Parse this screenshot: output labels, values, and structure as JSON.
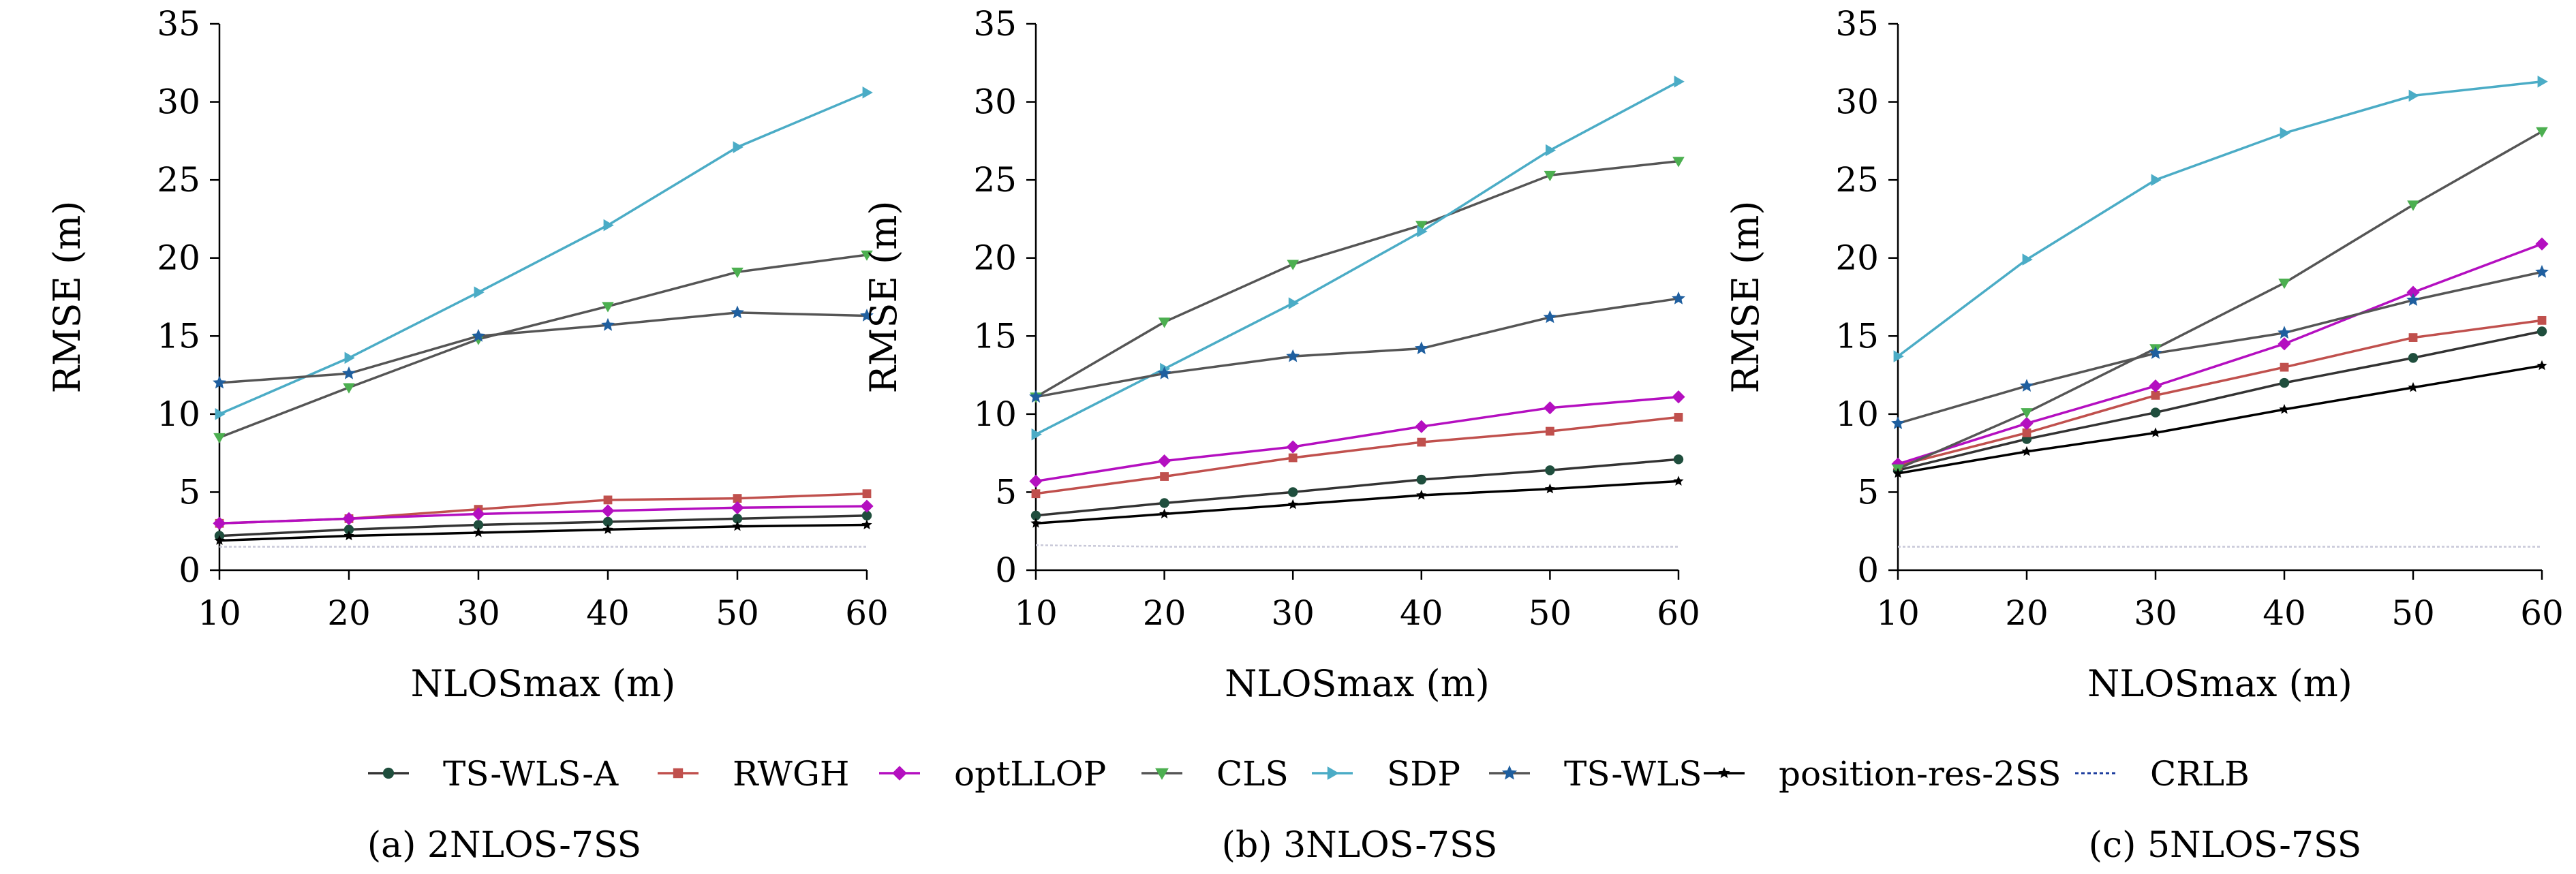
{
  "chart_data": [
    {
      "type": "line",
      "caption": "(a) 2NLOS-7SS",
      "xlabel": "NLOSmax (m)",
      "ylabel": "RMSE (m)",
      "xlim": [
        10,
        60
      ],
      "ylim": [
        0,
        35
      ],
      "x_ticks": [
        10,
        20,
        30,
        40,
        50,
        60
      ],
      "y_ticks": [
        0,
        5,
        10,
        15,
        20,
        25,
        30,
        35
      ],
      "grid": false,
      "x": [
        10,
        20,
        30,
        40,
        50,
        60
      ],
      "series": [
        {
          "name": "TS-WLS-A",
          "values": [
            2.2,
            2.6,
            2.9,
            3.1,
            3.3,
            3.5
          ]
        },
        {
          "name": "RWGH",
          "values": [
            3.0,
            3.3,
            3.9,
            4.5,
            4.6,
            4.9
          ]
        },
        {
          "name": "optLLOP",
          "values": [
            3.0,
            3.3,
            3.6,
            3.8,
            4.0,
            4.1
          ]
        },
        {
          "name": "CLS",
          "values": [
            8.5,
            11.7,
            14.8,
            16.9,
            19.1,
            20.2
          ]
        },
        {
          "name": "SDP",
          "values": [
            10.0,
            13.6,
            17.8,
            22.1,
            27.1,
            30.6
          ]
        },
        {
          "name": "TS-WLS",
          "values": [
            12.0,
            12.6,
            15.0,
            15.7,
            16.5,
            16.3
          ]
        },
        {
          "name": "position-res-2SS",
          "values": [
            1.9,
            2.2,
            2.4,
            2.6,
            2.8,
            2.9
          ]
        },
        {
          "name": "CRLB",
          "values": [
            1.5,
            1.5,
            1.5,
            1.5,
            1.5,
            1.5
          ]
        }
      ]
    },
    {
      "type": "line",
      "caption": "(b) 3NLOS-7SS",
      "xlabel": "NLOSmax (m)",
      "ylabel": "RMSE (m)",
      "xlim": [
        10,
        60
      ],
      "ylim": [
        0,
        35
      ],
      "x_ticks": [
        10,
        20,
        30,
        40,
        50,
        60
      ],
      "y_ticks": [
        0,
        5,
        10,
        15,
        20,
        25,
        30,
        35
      ],
      "grid": false,
      "x": [
        10,
        20,
        30,
        40,
        50,
        60
      ],
      "series": [
        {
          "name": "TS-WLS-A",
          "values": [
            3.5,
            4.3,
            5.0,
            5.8,
            6.4,
            7.1
          ]
        },
        {
          "name": "RWGH",
          "values": [
            4.9,
            6.0,
            7.2,
            8.2,
            8.9,
            9.8
          ]
        },
        {
          "name": "optLLOP",
          "values": [
            5.7,
            7.0,
            7.9,
            9.2,
            10.4,
            11.1
          ]
        },
        {
          "name": "CLS",
          "values": [
            11.1,
            15.9,
            19.6,
            22.1,
            25.3,
            26.2
          ]
        },
        {
          "name": "SDP",
          "values": [
            8.7,
            12.9,
            17.1,
            21.7,
            26.9,
            31.3
          ]
        },
        {
          "name": "TS-WLS",
          "values": [
            11.1,
            12.6,
            13.7,
            14.2,
            16.2,
            17.4
          ]
        },
        {
          "name": "position-res-2SS",
          "values": [
            3.0,
            3.6,
            4.2,
            4.8,
            5.2,
            5.7
          ]
        },
        {
          "name": "CRLB",
          "values": [
            1.6,
            1.5,
            1.5,
            1.5,
            1.5,
            1.5
          ]
        }
      ]
    },
    {
      "type": "line",
      "caption": "(c) 5NLOS-7SS",
      "xlabel": "NLOSmax (m)",
      "ylabel": "RMSE (m)",
      "xlim": [
        10,
        60
      ],
      "ylim": [
        0,
        35
      ],
      "x_ticks": [
        10,
        20,
        30,
        40,
        50,
        60
      ],
      "y_ticks": [
        0,
        5,
        10,
        15,
        20,
        25,
        30,
        35
      ],
      "grid": false,
      "x": [
        10,
        20,
        30,
        40,
        50,
        60
      ],
      "series": [
        {
          "name": "TS-WLS-A",
          "values": [
            6.4,
            8.4,
            10.1,
            12.0,
            13.6,
            15.3
          ]
        },
        {
          "name": "RWGH",
          "values": [
            6.7,
            8.8,
            11.2,
            13.0,
            14.9,
            16.0
          ]
        },
        {
          "name": "optLLOP",
          "values": [
            6.8,
            9.4,
            11.8,
            14.5,
            17.8,
            20.9
          ]
        },
        {
          "name": "CLS",
          "values": [
            6.5,
            10.1,
            14.2,
            18.4,
            23.4,
            28.1
          ]
        },
        {
          "name": "SDP",
          "values": [
            13.7,
            19.9,
            25.0,
            28.0,
            30.4,
            31.3
          ]
        },
        {
          "name": "TS-WLS",
          "values": [
            9.4,
            11.8,
            13.9,
            15.2,
            17.3,
            19.1
          ]
        },
        {
          "name": "position-res-2SS",
          "values": [
            6.2,
            7.6,
            8.8,
            10.3,
            11.7,
            13.1
          ]
        },
        {
          "name": "CRLB",
          "values": [
            1.5,
            1.5,
            1.5,
            1.5,
            1.5,
            1.5
          ]
        }
      ]
    }
  ],
  "legend": {
    "placement": "bottom",
    "items": [
      {
        "name": "TS-WLS-A",
        "color": "#1f4e3d",
        "marker": "circle",
        "line": "#333333"
      },
      {
        "name": "RWGH",
        "color": "#c0504d",
        "marker": "square",
        "line": "#c0504d"
      },
      {
        "name": "optLLOP",
        "color": "#b40fc0",
        "marker": "diamond",
        "line": "#b40fc0"
      },
      {
        "name": "CLS",
        "color": "#4caf50",
        "marker": "triangle-down",
        "line": "#555555"
      },
      {
        "name": "SDP",
        "color": "#4bacc6",
        "marker": "triangle-right",
        "line": "#4bacc6"
      },
      {
        "name": "TS-WLS",
        "color": "#1f5f9f",
        "marker": "star",
        "line": "#555555"
      },
      {
        "name": "position-res-2SS",
        "color": "#000000",
        "marker": "star-small",
        "line": "#000000"
      },
      {
        "name": "CRLB",
        "color": "#1f3f9f",
        "marker": "none",
        "line": "#1f3f9f",
        "dash": true
      }
    ]
  }
}
